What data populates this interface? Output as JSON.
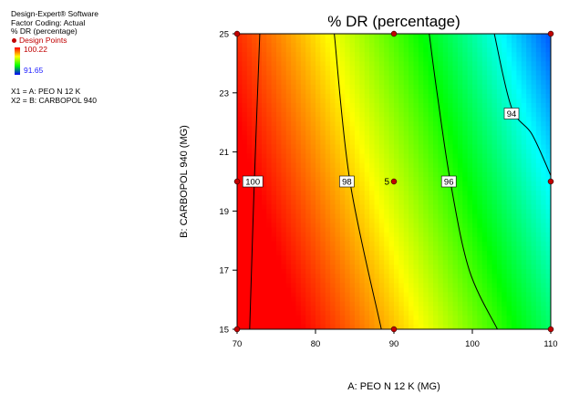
{
  "side_panel": {
    "software": "Design-Expert® Software",
    "factor_coding": "Factor Coding: Actual",
    "response": "% DR (percentage)",
    "design_points_label": "Design Points",
    "scale_high": "100.22",
    "scale_low": "91.65",
    "x1": "X1 = A: PEO N 12 K",
    "x2": "X2 = B: CARBOPOL 940"
  },
  "colors": {
    "scale": [
      "#ff0000",
      "#ffff00",
      "#00ff00",
      "#00ffff",
      "#0000ff"
    ],
    "design_point": "#c00000",
    "low_text": "#1c1cff"
  },
  "chart_data": {
    "type": "contour",
    "title": "% DR (percentage)",
    "xlabel": "A: PEO N 12 K (MG)",
    "ylabel": "B: CARBOPOL 940 (MG)",
    "xlim": [
      70,
      110
    ],
    "ylim": [
      15,
      25
    ],
    "x_ticks": [
      "70",
      "80",
      "90",
      "100",
      "110"
    ],
    "y_ticks": [
      "15",
      "17",
      "19",
      "21",
      "23",
      "25"
    ],
    "color_range": [
      91.65,
      100.22
    ],
    "contours": [
      {
        "label": "100",
        "label_at": [
          72,
          20
        ],
        "points": [
          [
            71.6,
            15
          ],
          [
            72.2,
            20
          ],
          [
            72.9,
            25
          ]
        ]
      },
      {
        "label": "98",
        "label_at": [
          84,
          20
        ],
        "points": [
          [
            88.4,
            15
          ],
          [
            84.4,
            20
          ],
          [
            82.4,
            25
          ]
        ]
      },
      {
        "label": "96",
        "label_at": [
          97,
          20
        ],
        "points": [
          [
            103.2,
            15
          ],
          [
            99.6,
            17
          ],
          [
            97.2,
            20
          ],
          [
            95.5,
            23
          ],
          [
            94.5,
            25
          ]
        ]
      },
      {
        "label": "94",
        "label_at": [
          105,
          22.3
        ],
        "points": [
          [
            110,
            20.2
          ],
          [
            107.6,
            21.6
          ],
          [
            105,
            22.5
          ],
          [
            102.8,
            25
          ]
        ]
      }
    ],
    "design_points": [
      {
        "x": 70,
        "y": 15
      },
      {
        "x": 90,
        "y": 15
      },
      {
        "x": 110,
        "y": 15
      },
      {
        "x": 70,
        "y": 20
      },
      {
        "x": 90,
        "y": 20,
        "label": "5"
      },
      {
        "x": 110,
        "y": 20
      },
      {
        "x": 70,
        "y": 25
      },
      {
        "x": 90,
        "y": 25
      },
      {
        "x": 110,
        "y": 25
      }
    ]
  }
}
